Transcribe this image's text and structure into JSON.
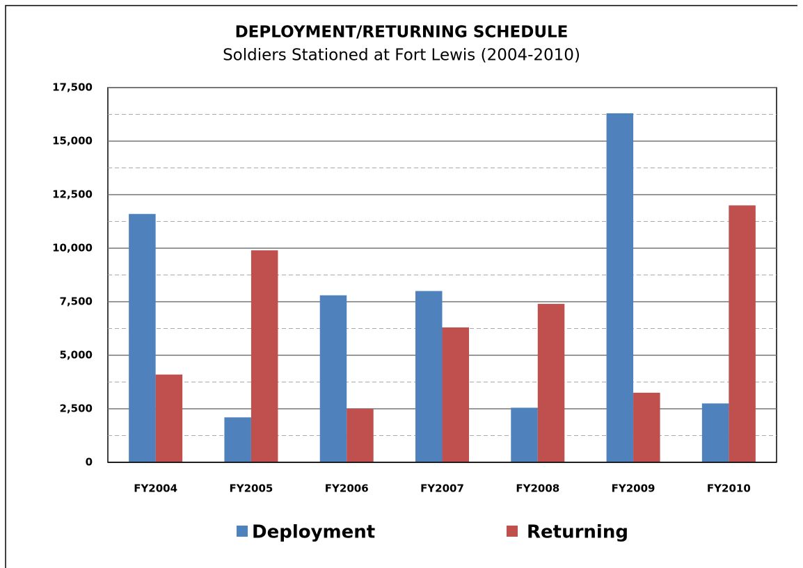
{
  "chart_data": {
    "type": "bar",
    "title": "DEPLOYMENT/RETURNING SCHEDULE",
    "subtitle": "Soldiers Stationed at Fort Lewis (2004-2010)",
    "categories": [
      "FY2004",
      "FY2005",
      "FY2006",
      "FY2007",
      "FY2008",
      "FY2009",
      "FY2010"
    ],
    "series": [
      {
        "name": "Deployment",
        "color": "#4f81bd",
        "values": [
          11600,
          2100,
          7800,
          8000,
          2550,
          16300,
          2750
        ]
      },
      {
        "name": "Returning",
        "color": "#c0504d",
        "values": [
          4100,
          9900,
          2500,
          6300,
          7400,
          3250,
          12000
        ]
      }
    ],
    "ylim": [
      0,
      17500
    ],
    "yticks": [
      0,
      {
        "value": 2500,
        "label": "2,500"
      },
      {
        "value": 5000,
        "label": "5,000"
      },
      {
        "value": 7500,
        "label": "7,500"
      },
      {
        "value": 10000,
        "label": "10,000"
      },
      {
        "value": 12500,
        "label": "12,500"
      },
      {
        "value": 15000,
        "label": "15,000"
      },
      {
        "value": 17500,
        "label": "17,500"
      }
    ],
    "minor_yticks": [
      1250,
      3750,
      6250,
      8750,
      11250,
      13750,
      16250
    ],
    "grid": true,
    "legend": "bottom"
  }
}
